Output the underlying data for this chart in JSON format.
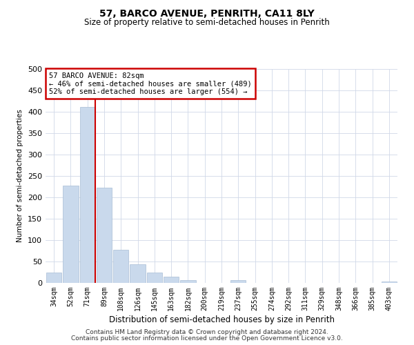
{
  "title": "57, BARCO AVENUE, PENRITH, CA11 8LY",
  "subtitle": "Size of property relative to semi-detached houses in Penrith",
  "xlabel": "Distribution of semi-detached houses by size in Penrith",
  "ylabel": "Number of semi-detached properties",
  "bar_labels": [
    "34sqm",
    "52sqm",
    "71sqm",
    "89sqm",
    "108sqm",
    "126sqm",
    "145sqm",
    "163sqm",
    "182sqm",
    "200sqm",
    "219sqm",
    "237sqm",
    "255sqm",
    "274sqm",
    "292sqm",
    "311sqm",
    "329sqm",
    "348sqm",
    "366sqm",
    "385sqm",
    "403sqm"
  ],
  "bar_values": [
    25,
    228,
    411,
    222,
    78,
    44,
    25,
    15,
    7,
    0,
    0,
    6,
    0,
    0,
    0,
    0,
    0,
    0,
    0,
    0,
    4
  ],
  "bar_color": "#c9d9ec",
  "bar_edge_color": "#a8bdd4",
  "vline_color": "#cc0000",
  "annotation_title": "57 BARCO AVENUE: 82sqm",
  "annotation_line1": "← 46% of semi-detached houses are smaller (489)",
  "annotation_line2": "52% of semi-detached houses are larger (554) →",
  "annotation_box_color": "white",
  "annotation_box_edge": "#cc0000",
  "ylim": [
    0,
    500
  ],
  "yticks": [
    0,
    50,
    100,
    150,
    200,
    250,
    300,
    350,
    400,
    450,
    500
  ],
  "footer1": "Contains HM Land Registry data © Crown copyright and database right 2024.",
  "footer2": "Contains public sector information licensed under the Open Government Licence v3.0.",
  "bg_color": "#ffffff",
  "grid_color": "#d0d8e8"
}
